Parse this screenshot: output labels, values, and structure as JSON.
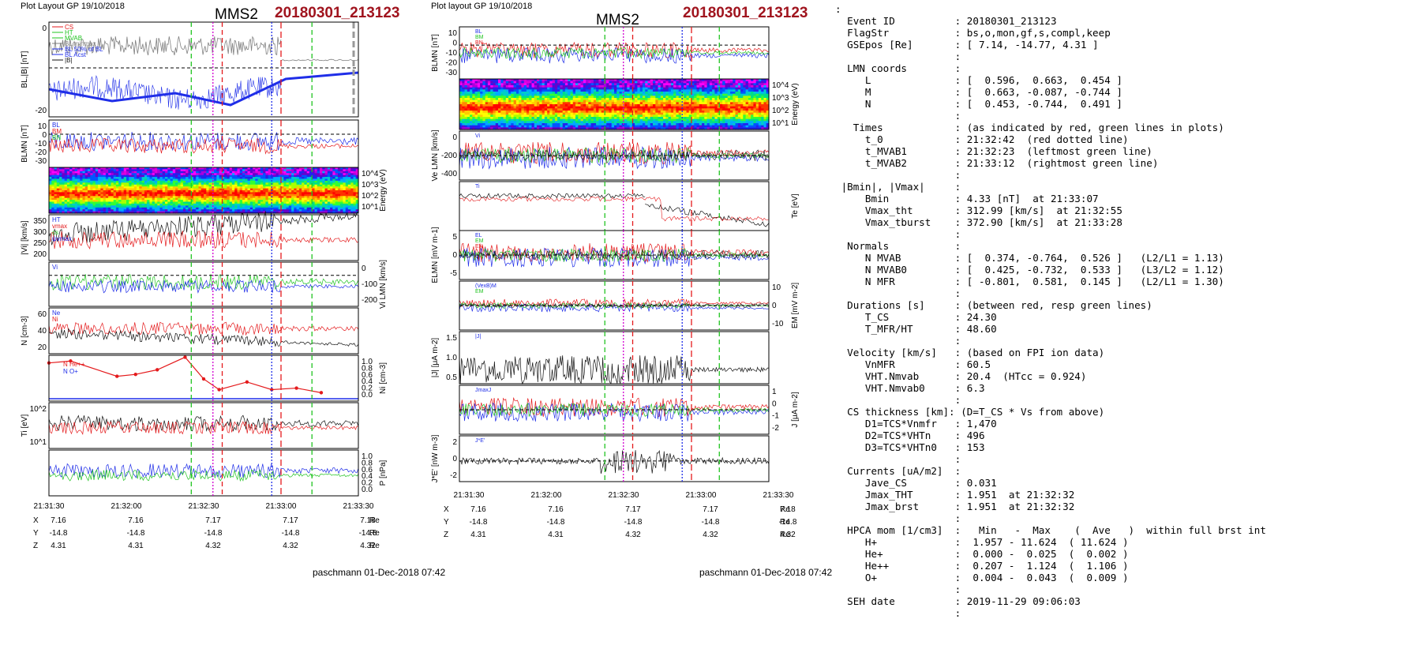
{
  "left_figure": {
    "header": "Plot Layout GP 19/10/2018",
    "title": "MMS2",
    "event": "20180301_213123",
    "footer": "paschmann 01-Dec-2018 07:42"
  },
  "right_figure": {
    "header": "Plot layout GP 19/10/2018",
    "title": "MMS2",
    "event": "20180301_213123",
    "footer": "paschmann 01-Dec-2018 07:42"
  },
  "time_ticks": [
    "21:31:30",
    "21:32:00",
    "21:32:30",
    "21:33:00",
    "21:33:30"
  ],
  "position_table": {
    "rows": [
      {
        "label": "X",
        "values": [
          "7.16",
          "7.16",
          "7.17",
          "7.17",
          "7.18"
        ],
        "unit": "Re"
      },
      {
        "label": "Y",
        "values": [
          "-14.8",
          "-14.8",
          "-14.8",
          "-14.8",
          "-14.8"
        ],
        "unit": "Re"
      },
      {
        "label": "Z",
        "values": [
          "4.31",
          "4.31",
          "4.32",
          "4.32",
          "4.32"
        ],
        "unit": "Re"
      }
    ]
  },
  "colors": {
    "red": "#e41a1c",
    "green": "#22c422",
    "blue": "#1f2ee8",
    "black": "#111111",
    "gray": "#808080",
    "magenta": "#d000d0",
    "event": "#a0141e"
  },
  "chart_data": [
    {
      "type": "line",
      "panel": "left-1",
      "ylabel": "BL,|B| [nT]",
      "yticks": [
        "0",
        "-20"
      ],
      "ylim": [
        -35,
        40
      ],
      "legend": [
        "CS",
        "HT",
        "MVAB",
        "BL minmax",
        "BL 50% of BL",
        "BL Acst",
        "|B|"
      ],
      "series": [
        {
          "name": "|B|",
          "level": 25
        },
        {
          "name": "BL",
          "level": -15
        }
      ]
    },
    {
      "type": "line",
      "panel": "left-2",
      "ylabel": "BLMN [nT]",
      "yticks": [
        "10",
        "0",
        "-10",
        "-20",
        "-30"
      ],
      "ylim": [
        -35,
        15
      ],
      "legend": [
        "BL",
        "BM",
        "BN"
      ]
    },
    {
      "type": "heatmap",
      "panel": "left-3",
      "ylabel": "Energy (eV)",
      "yticks": [
        "10^4",
        "10^3",
        "10^2",
        "10^1"
      ]
    },
    {
      "type": "line",
      "panel": "left-4",
      "ylabel": "|Vi| [km/s]",
      "yticks": [
        "350",
        "300",
        "250",
        "200"
      ],
      "ylim": [
        150,
        370
      ],
      "legend": [
        "HT",
        "vmax",
        "cs",
        "ψvmax"
      ]
    },
    {
      "type": "line",
      "panel": "left-5",
      "ylabel": "Vi LMN [km/s]",
      "yticks": [
        "0",
        "-100",
        "-200"
      ],
      "ylim": [
        -230,
        20
      ],
      "legend": [
        "Vi"
      ]
    },
    {
      "type": "line",
      "panel": "left-6",
      "ylabel": "N [cm-3]",
      "yticks": [
        "60",
        "40",
        "20"
      ],
      "ylim": [
        0,
        70
      ],
      "legend": [
        "Ne",
        "Ni"
      ]
    },
    {
      "type": "line",
      "panel": "left-7",
      "ylabel": "Ni [cm-3]",
      "yticks": [
        "1.0",
        "0.8",
        "0.6",
        "0.4",
        "0.2",
        "0.0"
      ],
      "ylim": [
        0,
        1.2
      ],
      "legend": [
        "N He++",
        "N O+"
      ],
      "series": [
        {
          "name": "N He++",
          "x_frac": [
            0.0,
            0.07,
            0.22,
            0.28,
            0.35,
            0.44,
            0.5,
            0.55,
            0.64,
            0.72,
            0.8,
            0.88
          ],
          "values": [
            1.0,
            1.05,
            0.65,
            0.7,
            0.82,
            1.15,
            0.58,
            0.3,
            0.5,
            0.3,
            0.34,
            0.22
          ]
        }
      ]
    },
    {
      "type": "line",
      "panel": "left-8",
      "ylabel": "Ti [eV]",
      "yticks": [
        "10^2",
        "10^1"
      ]
    },
    {
      "type": "line",
      "panel": "left-9",
      "ylabel": "P [nPa]",
      "yticks": [
        "1.0",
        "0.8",
        "0.6",
        "0.4",
        "0.2",
        "0.0"
      ],
      "ylim": [
        0,
        1.05
      ]
    },
    {
      "type": "line",
      "panel": "right-1",
      "ylabel": "BLMN [nT]",
      "yticks": [
        "10",
        "0",
        "-10",
        "-20",
        "-30"
      ],
      "ylim": [
        -35,
        15
      ],
      "legend": [
        "BL",
        "BM",
        "BN"
      ]
    },
    {
      "type": "heatmap",
      "panel": "right-2",
      "ylabel": "Energy (eV)",
      "yticks": [
        "10^4",
        "10^3",
        "10^2",
        "10^1"
      ]
    },
    {
      "type": "line",
      "panel": "right-3",
      "ylabel": "Ve LMN [km/s]",
      "yticks": [
        "0",
        "-200",
        "-400"
      ],
      "ylim": [
        -480,
        60
      ],
      "legend": [
        "Vi"
      ]
    },
    {
      "type": "line",
      "panel": "right-4",
      "ylabel": "Te [eV]",
      "legend": [
        "Ti"
      ]
    },
    {
      "type": "line",
      "panel": "right-5",
      "ylabel": "ELMN [mV m-1]",
      "yticks": [
        "5",
        "0",
        "-5"
      ],
      "ylim": [
        -8,
        6
      ],
      "legend": [
        "EL",
        "EM",
        "EN"
      ]
    },
    {
      "type": "line",
      "panel": "right-6",
      "ylabel": "EM [mV m-2]",
      "yticks": [
        "10",
        "0",
        "-10"
      ],
      "ylim": [
        -14,
        14
      ],
      "legend": [
        "(VexB)M",
        "EM"
      ]
    },
    {
      "type": "line",
      "panel": "right-7",
      "ylabel": "|J| [μA m-2]",
      "yticks": [
        "1.5",
        "1.0",
        "0.5"
      ],
      "ylim": [
        0,
        1.8
      ],
      "legend": [
        "|J|"
      ]
    },
    {
      "type": "line",
      "panel": "right-8",
      "ylabel": "J [μA m-2]",
      "yticks": [
        "1",
        "0",
        "-1",
        "-2"
      ],
      "ylim": [
        -2.2,
        1.4
      ],
      "legend": [
        "JmaxJ"
      ]
    },
    {
      "type": "line",
      "panel": "right-9",
      "ylabel": "J*E' [nW m-3]",
      "yticks": [
        "2",
        "0",
        "-2"
      ],
      "ylim": [
        -3.5,
        3
      ],
      "legend": [
        "J*E'"
      ]
    }
  ],
  "info_lines": [
    ":",
    "  Event ID          : 20180301_213123",
    "  FlagStr           : bs,o,mon,gf,s,compl,keep",
    "  GSEpos [Re]       : [ 7.14, -14.77, 4.31 ]",
    "                    :",
    "  LMN coords        :",
    "     L              : [  0.596,  0.663,  0.454 ]",
    "     M              : [  0.663, -0.087, -0.744 ]",
    "     N              : [  0.453, -0.744,  0.491 ]",
    "                    :",
    "   Times            : (as indicated by red, green lines in plots)",
    "     t_0            : 21:32:42  (red dotted line)",
    "     t_MVAB1        : 21:32:23  (leftmost green line)",
    "     t_MVAB2        : 21:33:12  (rightmost green line)",
    "                    :",
    " |Bmin|, |Vmax|     :",
    "     Bmin           : 4.33 [nT]  at 21:33:07",
    "     Vmax_tht       : 312.99 [km/s]  at 21:32:55",
    "     Vmax_tburst    : 372.90 [km/s]  at 21:33:28",
    "                    :",
    "  Normals           :",
    "     N MVAB         : [  0.374, -0.764,  0.526 ]   (L2/L1 = 1.13)",
    "     N MVAB0        : [  0.425, -0.732,  0.533 ]   (L3/L2 = 1.12)",
    "     N MFR          : [ -0.801,  0.581,  0.145 ]   (L2/L1 = 1.30)",
    "                    :",
    "  Durations [s]     : (between red, resp green lines)",
    "     T_CS           : 24.30",
    "     T_MFR/HT       : 48.60",
    "                    :",
    "  Velocity [km/s]   : (based on FPI ion data)",
    "     VnMFR          : 60.5",
    "     VHT.Nmvab      : 20.4  (HTcc = 0.924)",
    "     VHT.Nmvab0     : 6.3",
    "                    :",
    "  CS thickness [km]: (D=T_CS * Vs from above)",
    "     D1=TCS*Vnmfr   : 1,470",
    "     D2=TCS*VHTn    : 496",
    "     D3=TCS*VHTn0   : 153",
    "                    :",
    "  Currents [uA/m2]  :",
    "     Jave_CS        : 0.031",
    "     Jmax_THT       : 1.951  at 21:32:32",
    "     Jmax_brst      : 1.951  at 21:32:32",
    "                    :",
    "  HPCA mom [1/cm3]  :   Min   -  Max    (  Ave   )  within full brst int",
    "     H+             :  1.957 - 11.624  ( 11.624 )",
    "     He+            :  0.000 -  0.025  (  0.002 )",
    "     He++           :  0.207 -  1.124  (  1.106 )",
    "     O+             :  0.004 -  0.043  (  0.009 )",
    "                    :",
    "  SEH date          : 2019-11-29 09:06:03",
    "                    :"
  ]
}
